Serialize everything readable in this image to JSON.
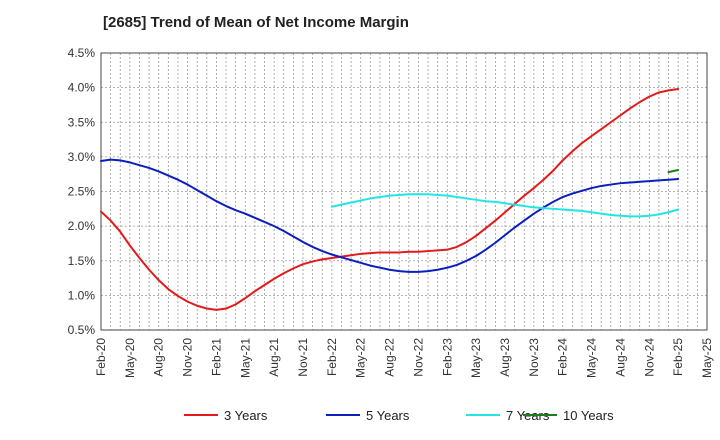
{
  "chart_data": {
    "type": "line",
    "title": "[2685]  Trend of Mean of Net Income Margin",
    "xlabel": "",
    "ylabel": "",
    "ylim": [
      0.5,
      4.5
    ],
    "yticks": [
      "0.5%",
      "1.0%",
      "1.5%",
      "2.0%",
      "2.5%",
      "3.0%",
      "3.5%",
      "4.0%",
      "4.5%"
    ],
    "x_ticks": [
      "Feb-20",
      "May-20",
      "Aug-20",
      "Nov-20",
      "Feb-21",
      "May-21",
      "Aug-21",
      "Nov-21",
      "Feb-22",
      "May-22",
      "Aug-22",
      "Nov-22",
      "Feb-23",
      "May-23",
      "Aug-23",
      "Nov-23",
      "Feb-24",
      "May-24",
      "Aug-24",
      "Nov-24",
      "Feb-25",
      "May-25"
    ],
    "grid": true,
    "legend_position": "bottom",
    "series": [
      {
        "name": "3 Years",
        "color": "#e31a1c",
        "points": [
          [
            "Feb-20",
            2.21
          ],
          [
            "Mar-20",
            2.08
          ],
          [
            "Apr-20",
            1.92
          ],
          [
            "May-20",
            1.72
          ],
          [
            "Jun-20",
            1.54
          ],
          [
            "Jul-20",
            1.37
          ],
          [
            "Aug-20",
            1.22
          ],
          [
            "Sep-20",
            1.09
          ],
          [
            "Oct-20",
            0.99
          ],
          [
            "Nov-20",
            0.91
          ],
          [
            "Dec-20",
            0.85
          ],
          [
            "Jan-21",
            0.81
          ],
          [
            "Feb-21",
            0.79
          ],
          [
            "Mar-21",
            0.81
          ],
          [
            "Apr-21",
            0.87
          ],
          [
            "May-21",
            0.96
          ],
          [
            "Jun-21",
            1.06
          ],
          [
            "Jul-21",
            1.15
          ],
          [
            "Aug-21",
            1.24
          ],
          [
            "Sep-21",
            1.32
          ],
          [
            "Oct-21",
            1.39
          ],
          [
            "Nov-21",
            1.45
          ],
          [
            "Dec-21",
            1.49
          ],
          [
            "Jan-22",
            1.52
          ],
          [
            "Feb-22",
            1.54
          ],
          [
            "Mar-22",
            1.56
          ],
          [
            "Apr-22",
            1.58
          ],
          [
            "May-22",
            1.6
          ],
          [
            "Jun-22",
            1.61
          ],
          [
            "Jul-22",
            1.62
          ],
          [
            "Aug-22",
            1.62
          ],
          [
            "Sep-22",
            1.62
          ],
          [
            "Oct-22",
            1.63
          ],
          [
            "Nov-22",
            1.63
          ],
          [
            "Dec-22",
            1.64
          ],
          [
            "Jan-23",
            1.65
          ],
          [
            "Feb-23",
            1.66
          ],
          [
            "Mar-23",
            1.7
          ],
          [
            "Apr-23",
            1.77
          ],
          [
            "May-23",
            1.86
          ],
          [
            "Jun-23",
            1.97
          ],
          [
            "Jul-23",
            2.08
          ],
          [
            "Aug-23",
            2.2
          ],
          [
            "Sep-23",
            2.32
          ],
          [
            "Oct-23",
            2.44
          ],
          [
            "Nov-23",
            2.55
          ],
          [
            "Dec-23",
            2.67
          ],
          [
            "Jan-24",
            2.8
          ],
          [
            "Feb-24",
            2.95
          ],
          [
            "Mar-24",
            3.08
          ],
          [
            "Apr-24",
            3.2
          ],
          [
            "May-24",
            3.3
          ],
          [
            "Jun-24",
            3.4
          ],
          [
            "Jul-24",
            3.5
          ],
          [
            "Aug-24",
            3.6
          ],
          [
            "Sep-24",
            3.7
          ],
          [
            "Oct-24",
            3.79
          ],
          [
            "Nov-24",
            3.87
          ],
          [
            "Dec-24",
            3.93
          ],
          [
            "Jan-25",
            3.96
          ],
          [
            "Feb-25",
            3.98
          ]
        ]
      },
      {
        "name": "5 Years",
        "color": "#0b1fbf",
        "points": [
          [
            "Feb-20",
            2.94
          ],
          [
            "Mar-20",
            2.96
          ],
          [
            "Apr-20",
            2.95
          ],
          [
            "May-20",
            2.92
          ],
          [
            "Jun-20",
            2.88
          ],
          [
            "Jul-20",
            2.84
          ],
          [
            "Aug-20",
            2.79
          ],
          [
            "Sep-20",
            2.73
          ],
          [
            "Oct-20",
            2.67
          ],
          [
            "Nov-20",
            2.6
          ],
          [
            "Dec-20",
            2.52
          ],
          [
            "Jan-21",
            2.44
          ],
          [
            "Feb-21",
            2.36
          ],
          [
            "Mar-21",
            2.29
          ],
          [
            "Apr-21",
            2.23
          ],
          [
            "May-21",
            2.18
          ],
          [
            "Jun-21",
            2.12
          ],
          [
            "Jul-21",
            2.06
          ],
          [
            "Aug-21",
            2.0
          ],
          [
            "Sep-21",
            1.93
          ],
          [
            "Oct-21",
            1.85
          ],
          [
            "Nov-21",
            1.77
          ],
          [
            "Dec-21",
            1.7
          ],
          [
            "Jan-22",
            1.64
          ],
          [
            "Feb-22",
            1.59
          ],
          [
            "Mar-22",
            1.55
          ],
          [
            "Apr-22",
            1.51
          ],
          [
            "May-22",
            1.47
          ],
          [
            "Jun-22",
            1.43
          ],
          [
            "Jul-22",
            1.4
          ],
          [
            "Aug-22",
            1.37
          ],
          [
            "Sep-22",
            1.35
          ],
          [
            "Oct-22",
            1.34
          ],
          [
            "Nov-22",
            1.34
          ],
          [
            "Dec-22",
            1.35
          ],
          [
            "Jan-23",
            1.37
          ],
          [
            "Feb-23",
            1.4
          ],
          [
            "Mar-23",
            1.44
          ],
          [
            "Apr-23",
            1.5
          ],
          [
            "May-23",
            1.57
          ],
          [
            "Jun-23",
            1.66
          ],
          [
            "Jul-23",
            1.76
          ],
          [
            "Aug-23",
            1.87
          ],
          [
            "Sep-23",
            1.98
          ],
          [
            "Oct-23",
            2.08
          ],
          [
            "Nov-23",
            2.18
          ],
          [
            "Dec-23",
            2.27
          ],
          [
            "Jan-24",
            2.35
          ],
          [
            "Feb-24",
            2.42
          ],
          [
            "Mar-24",
            2.47
          ],
          [
            "Apr-24",
            2.51
          ],
          [
            "May-24",
            2.55
          ],
          [
            "Jun-24",
            2.58
          ],
          [
            "Jul-24",
            2.6
          ],
          [
            "Aug-24",
            2.62
          ],
          [
            "Sep-24",
            2.63
          ],
          [
            "Oct-24",
            2.64
          ],
          [
            "Nov-24",
            2.65
          ],
          [
            "Dec-24",
            2.66
          ],
          [
            "Jan-25",
            2.67
          ],
          [
            "Feb-25",
            2.68
          ]
        ]
      },
      {
        "name": "7 Years",
        "color": "#22e5e5",
        "points": [
          [
            "Feb-22",
            2.28
          ],
          [
            "Mar-22",
            2.31
          ],
          [
            "Apr-22",
            2.34
          ],
          [
            "May-22",
            2.37
          ],
          [
            "Jun-22",
            2.4
          ],
          [
            "Jul-22",
            2.42
          ],
          [
            "Aug-22",
            2.44
          ],
          [
            "Sep-22",
            2.45
          ],
          [
            "Oct-22",
            2.46
          ],
          [
            "Nov-22",
            2.46
          ],
          [
            "Dec-22",
            2.46
          ],
          [
            "Jan-23",
            2.45
          ],
          [
            "Feb-23",
            2.44
          ],
          [
            "Mar-23",
            2.42
          ],
          [
            "Apr-23",
            2.4
          ],
          [
            "May-23",
            2.38
          ],
          [
            "Jun-23",
            2.36
          ],
          [
            "Jul-23",
            2.35
          ],
          [
            "Aug-23",
            2.33
          ],
          [
            "Sep-23",
            2.31
          ],
          [
            "Oct-23",
            2.29
          ],
          [
            "Nov-23",
            2.27
          ],
          [
            "Dec-23",
            2.26
          ],
          [
            "Jan-24",
            2.25
          ],
          [
            "Feb-24",
            2.24
          ],
          [
            "Mar-24",
            2.23
          ],
          [
            "Apr-24",
            2.22
          ],
          [
            "May-24",
            2.2
          ],
          [
            "Jun-24",
            2.18
          ],
          [
            "Jul-24",
            2.16
          ],
          [
            "Aug-24",
            2.15
          ],
          [
            "Sep-24",
            2.14
          ],
          [
            "Oct-24",
            2.14
          ],
          [
            "Nov-24",
            2.15
          ],
          [
            "Dec-24",
            2.17
          ],
          [
            "Jan-25",
            2.2
          ],
          [
            "Feb-25",
            2.24
          ]
        ]
      },
      {
        "name": "10 Years",
        "color": "#1e7b1e",
        "points": [
          [
            "Jan-25",
            2.78
          ],
          [
            "Feb-25",
            2.81
          ]
        ]
      }
    ]
  }
}
